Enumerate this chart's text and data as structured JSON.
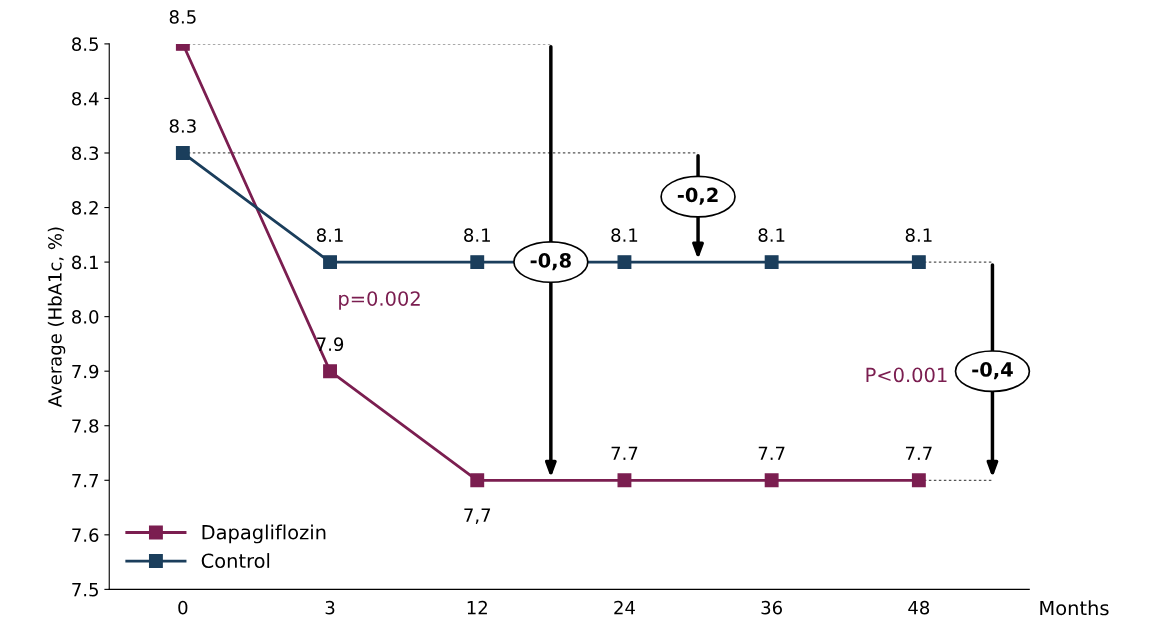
{
  "chart_data": {
    "type": "line",
    "xlabel": "Months",
    "ylabel": "Average (HbA1c, %)",
    "categories": [
      "0",
      "3",
      "12",
      "24",
      "36",
      "48"
    ],
    "series": [
      {
        "name": "Dapagliflozin",
        "color": "#7b1e50",
        "values": [
          8.5,
          7.9,
          7.7,
          7.7,
          7.7,
          7.7
        ],
        "value_labels": [
          "8.5",
          "7.9",
          "7,7",
          "7.7",
          "7.7",
          "7.7"
        ]
      },
      {
        "name": "Control",
        "color": "#1b3e5c",
        "values": [
          8.3,
          8.1,
          8.1,
          8.1,
          8.1,
          8.1
        ],
        "value_labels": [
          "8.3",
          "8.1",
          "8.1",
          "8.1",
          "8.1",
          "8.1"
        ]
      }
    ],
    "ylim": [
      7.5,
      8.5
    ],
    "yticks": [
      {
        "value": 7.5,
        "label": "7.5"
      },
      {
        "value": 7.6,
        "label": "7.6"
      },
      {
        "value": 7.7,
        "label": "7.7"
      },
      {
        "value": 7.8,
        "label": "7.8"
      },
      {
        "value": 7.9,
        "label": "7.9"
      },
      {
        "value": 8.0,
        "label": "8.0"
      },
      {
        "value": 8.1,
        "label": "8.1"
      },
      {
        "value": 8.2,
        "label": "8.2"
      },
      {
        "value": 8.3,
        "label": "8.3"
      },
      {
        "value": 8.4,
        "label": "8.4"
      },
      {
        "value": 8.5,
        "label": "8.5"
      }
    ],
    "annotations": [
      "p=0.002",
      "P<0.001",
      "-0,8",
      "-0,2",
      "-0,4"
    ],
    "marker": "square",
    "line_style": "solid",
    "grid": false,
    "legend": "bottom left"
  }
}
